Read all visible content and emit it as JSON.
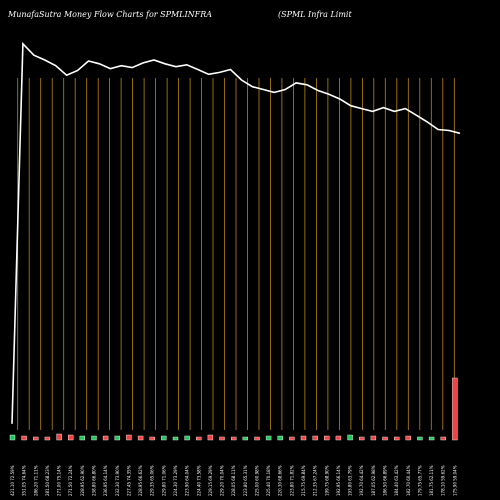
{
  "header": {
    "title": "MunafaSutra  Money Flow  Charts for SPMLINFRA",
    "subtitle": "(SPML  Infra  Limit"
  },
  "colors": {
    "background": "#000000",
    "grid": "#b8860b",
    "line": "#ffffff",
    "bar_up": "#22c55e",
    "bar_down": "#ef4444",
    "bar_neutral": "#cccccc"
  },
  "chart_data": {
    "type": "line",
    "series": [
      {
        "values": [
          17,
          416,
          404,
          399,
          393,
          383,
          388,
          398,
          395,
          390,
          393,
          391,
          396,
          399,
          395,
          392,
          394,
          389,
          384,
          386,
          389,
          378,
          371,
          368,
          365,
          368,
          375,
          373,
          367,
          363,
          358,
          351,
          348,
          345,
          349,
          345,
          348,
          341,
          334,
          326,
          325,
          322
        ]
      }
    ],
    "bars": {
      "values": [
        5,
        4,
        3,
        3,
        6,
        5,
        4,
        4,
        4,
        4,
        5,
        4,
        3,
        4,
        3,
        4,
        3,
        5,
        3,
        3,
        3,
        3,
        4,
        4,
        3,
        4,
        4,
        4,
        4,
        5,
        3,
        4,
        3,
        3,
        4,
        3,
        3,
        3,
        62
      ],
      "colors": [
        "up",
        "down",
        "down",
        "down",
        "down",
        "down",
        "up",
        "up",
        "down",
        "up",
        "down",
        "down",
        "down",
        "up",
        "up",
        "up",
        "down",
        "down",
        "down",
        "down",
        "up",
        "down",
        "up",
        "up",
        "down",
        "down",
        "down",
        "down",
        "down",
        "up",
        "down",
        "down",
        "down",
        "down",
        "down",
        "up",
        "up",
        "down",
        "down"
      ]
    },
    "x_labels": [
      "421.10 72.59%",
      "351.05 74.64%",
      "286.20 71.11%",
      "281.50 68.23%",
      "271.00 75.14%",
      "271.50 72.24%",
      "228.95 62.90%",
      "238.80 66.80%",
      "236.95 64.14%",
      "232.30 73.90%",
      "227.45 74.35%",
      "228.95 66.62%",
      "229.35 65.06%",
      "229.80 71.06%",
      "224.30 73.29%",
      "223.90 64.04%",
      "224.40 73.58%",
      "229.15 69.29%",
      "229.20 70.04%",
      "228.05 68.11%",
      "223.80 65.31%",
      "225.00 60.98%",
      "225.40 70.18%",
      "220.30 68.66%",
      "223.80 71.82%",
      "215.75 69.84%",
      "212.35 67.24%",
      "199.75 68.90%",
      "192.95 66.14%",
      "193.80 63.79%",
      "192.70 64.42%",
      "187.05 62.98%",
      "186.50 66.89%",
      "184.40 63.42%",
      "182.70 60.44%",
      "179.75 65.77%",
      "181.75 62.11%",
      "178.10 59.62%",
      "175.90 59.04%"
    ],
    "ylim": [
      0,
      420
    ],
    "grid": true
  }
}
